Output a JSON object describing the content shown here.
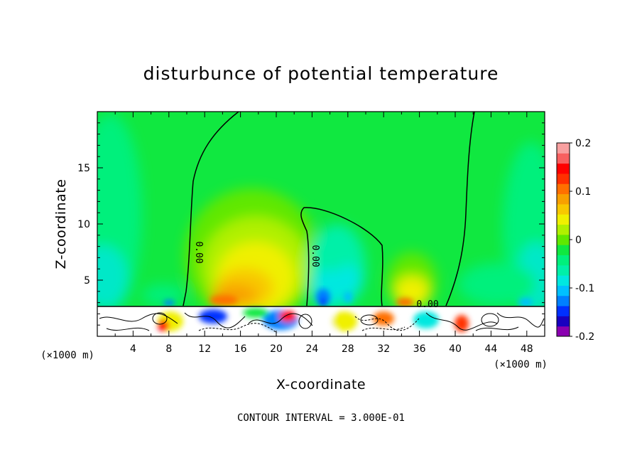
{
  "chart_data": {
    "type": "heatmap",
    "title": "disturbunce of potential temperature",
    "xlabel": "X-coordinate",
    "ylabel": "Z-coordinate",
    "x_unit": "(×1000 m)",
    "y_unit": "(×1000 m)",
    "xlim": [
      0,
      50
    ],
    "ylim": [
      0,
      20
    ],
    "x_ticks": [
      "4",
      "8",
      "12",
      "16",
      "20",
      "24",
      "28",
      "32",
      "36",
      "40",
      "44",
      "48"
    ],
    "x_tick_values": [
      4,
      8,
      12,
      16,
      20,
      24,
      28,
      32,
      36,
      40,
      44,
      48
    ],
    "y_ticks": [
      "5",
      "10",
      "15"
    ],
    "y_tick_values": [
      5,
      10,
      15
    ],
    "contour_interval_text": "CONTOUR INTERVAL = 3.000E-01",
    "contour_label": "0.00",
    "colorbar": {
      "range": [
        -0.2,
        0.2
      ],
      "tick_labels": [
        "0.2",
        "0.1",
        "0",
        "-0.1",
        "-0.2"
      ],
      "tick_values": [
        0.2,
        0.1,
        0.0,
        -0.1,
        -0.2
      ],
      "colors": [
        "#8a00b0",
        "#1800c0",
        "#0030ff",
        "#0080ff",
        "#00c0ff",
        "#00e8e0",
        "#00f0a8",
        "#00f07c",
        "#10e840",
        "#60e800",
        "#b0f000",
        "#f0f000",
        "#f8c800",
        "#f8a000",
        "#ff7000",
        "#ff3000",
        "#ff0000",
        "#f86060",
        "#f8a0a0"
      ]
    }
  }
}
